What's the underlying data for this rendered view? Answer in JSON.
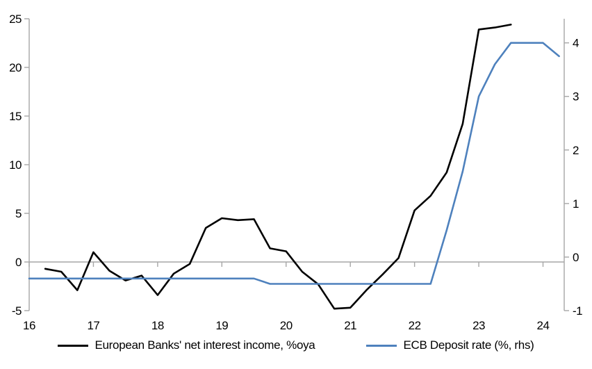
{
  "chart_data": {
    "type": "line",
    "title": "",
    "legend_position": "bottom",
    "grid": "zero-line-only",
    "x_axis": {
      "ticks": [
        16,
        17,
        18,
        19,
        20,
        21,
        22,
        23,
        24
      ],
      "min": 16,
      "max": 24.33
    },
    "left_axis": {
      "ticks": [
        -5,
        0,
        5,
        10,
        15,
        20,
        25
      ],
      "min": -5,
      "max": 25
    },
    "right_axis": {
      "ticks": [
        -1,
        0,
        1,
        2,
        3,
        4
      ],
      "min": -1,
      "max": 4.45
    },
    "series": [
      {
        "name": "European Banks' net interest income, %oya",
        "axis": "left",
        "color": "#000000",
        "x": [
          16.25,
          16.5,
          16.75,
          17.0,
          17.25,
          17.5,
          17.75,
          18.0,
          18.25,
          18.5,
          18.75,
          19.0,
          19.25,
          19.5,
          19.75,
          20.0,
          20.25,
          20.5,
          20.75,
          21.0,
          21.25,
          21.5,
          21.75,
          22.0,
          22.25,
          22.5,
          22.75,
          23.0,
          23.25,
          23.5
        ],
        "values": [
          -0.7,
          -1.0,
          -2.9,
          1.0,
          -0.9,
          -1.9,
          -1.4,
          -3.4,
          -1.2,
          -0.2,
          3.5,
          4.5,
          4.3,
          4.4,
          1.4,
          1.1,
          -1.0,
          -2.3,
          -4.8,
          -4.7,
          -2.9,
          -1.3,
          0.4,
          5.3,
          6.8,
          9.2,
          14.2,
          23.9,
          24.1,
          24.4
        ]
      },
      {
        "name": "ECB Deposit rate (%, rhs)",
        "axis": "right",
        "color": "#4E81BD",
        "x": [
          16.0,
          16.25,
          16.5,
          16.75,
          17.0,
          17.25,
          17.5,
          17.75,
          18.0,
          18.25,
          18.5,
          18.75,
          19.0,
          19.25,
          19.5,
          19.75,
          20.0,
          20.25,
          20.5,
          20.75,
          21.0,
          21.25,
          21.5,
          21.75,
          22.0,
          22.25,
          22.5,
          22.75,
          23.0,
          23.25,
          23.5,
          23.75,
          24.0,
          24.25
        ],
        "values": [
          -0.4,
          -0.4,
          -0.4,
          -0.4,
          -0.4,
          -0.4,
          -0.4,
          -0.4,
          -0.4,
          -0.4,
          -0.4,
          -0.4,
          -0.4,
          -0.4,
          -0.4,
          -0.5,
          -0.5,
          -0.5,
          -0.5,
          -0.5,
          -0.5,
          -0.5,
          -0.5,
          -0.5,
          -0.5,
          -0.5,
          0.5,
          1.6,
          3.0,
          3.6,
          4.0,
          4.0,
          4.0,
          3.75
        ]
      }
    ]
  },
  "colors": {
    "axis_line": "#A6A6A6",
    "zero_line": "#A6A6A6",
    "tick_text": "#000000",
    "background": "#FFFFFF"
  }
}
